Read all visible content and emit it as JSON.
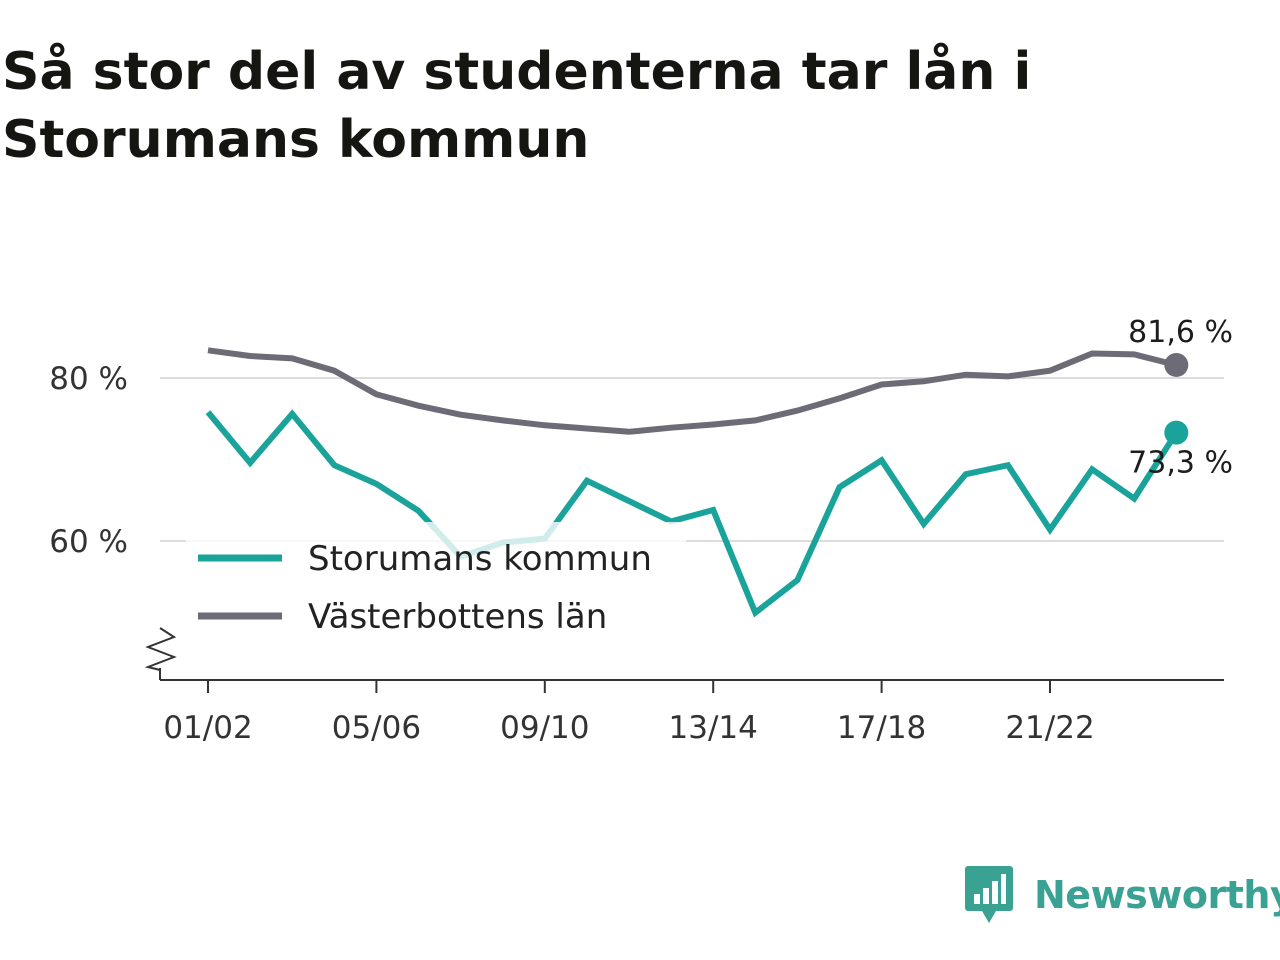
{
  "title": "Så stor del av studenterna tar lån i Storumans kommun",
  "brand": {
    "name": "Newsworthy",
    "icon": "newsworthy-logo-icon",
    "color": "#3aa293"
  },
  "chart_data": {
    "type": "line",
    "title": "Så stor del av studenterna tar lån i Storumans kommun",
    "xlabel": "",
    "ylabel": "",
    "x": [
      "01/02",
      "02/03",
      "03/04",
      "04/05",
      "05/06",
      "06/07",
      "07/08",
      "08/09",
      "09/10",
      "10/11",
      "11/12",
      "12/13",
      "13/14",
      "14/15",
      "15/16",
      "16/17",
      "17/18",
      "18/19",
      "19/20",
      "20/21",
      "21/22",
      "22/23",
      "23/24",
      "24/25"
    ],
    "xticks": [
      "01/02",
      "05/06",
      "09/10",
      "13/14",
      "17/18",
      "21/22"
    ],
    "yticks": [
      60,
      80
    ],
    "ytick_labels": [
      "60 %",
      "80 %"
    ],
    "ylim": [
      43,
      88
    ],
    "y_axis_break": true,
    "grid": "horizontal",
    "legend_position": "bottom-left",
    "series": [
      {
        "name": "Storumans kommun",
        "color": "#1aa39a",
        "values": [
          75.8,
          69.6,
          75.6,
          69.3,
          67.0,
          63.7,
          58.1,
          59.8,
          60.3,
          67.4,
          64.9,
          62.4,
          63.8,
          51.2,
          55.2,
          66.6,
          69.9,
          62.1,
          68.2,
          69.3,
          61.4,
          68.8,
          65.2,
          73.3
        ],
        "end_label": "73,3 %"
      },
      {
        "name": "Västerbottens län",
        "color": "#6d6b76",
        "values": [
          83.4,
          82.7,
          82.4,
          80.9,
          78.0,
          76.6,
          75.5,
          74.8,
          74.2,
          73.8,
          73.4,
          73.9,
          74.3,
          74.8,
          76.0,
          77.5,
          79.2,
          79.6,
          80.4,
          80.2,
          80.9,
          83.0,
          82.9,
          81.6
        ],
        "end_label": "81,6 %"
      }
    ]
  }
}
